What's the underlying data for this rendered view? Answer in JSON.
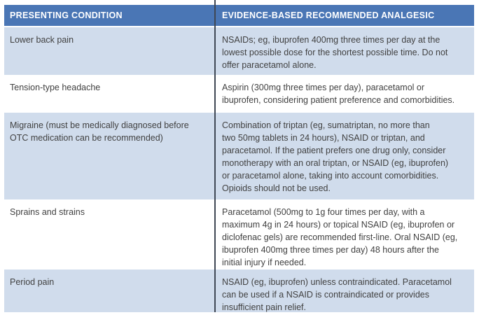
{
  "table": {
    "columns": [
      {
        "label": "PRESENTING CONDITION"
      },
      {
        "label": "EVIDENCE-BASED RECOMMENDED ANALGESIC"
      }
    ],
    "rows": [
      {
        "condition": "Lower back pain",
        "analgesic": "NSAIDs; eg, ibuprofen 400mg three times per day at the\nlowest possible dose for the shortest possible time. Do not\noffer paracetamol alone."
      },
      {
        "condition": "Tension-type headache",
        "analgesic": "Aspirin (300mg three times per day), paracetamol or\nibuprofen, considering patient preference and comorbidities."
      },
      {
        "condition": "Migraine (must be medically diagnosed before\nOTC medication can be recommended)",
        "analgesic": "Combination of triptan (eg, sumatriptan, no more than\ntwo 50mg tablets in 24 hours), NSAID or triptan, and\nparacetamol. If the patient prefers one drug only, consider\nmonotherapy with an oral triptan, or NSAID (eg, ibuprofen)\nor paracetamol alone, taking into account comorbidities.\nOpioids should not be used."
      },
      {
        "condition": "Sprains and strains",
        "analgesic": "Paracetamol (500mg to 1g four times per day, with a\nmaximum 4g in 24 hours) or topical NSAID (eg, ibuprofen or\ndiclofenac gels) are recommended first-line. Oral NSAID (eg,\nibuprofen 400mg three times per day) 48 hours after the\ninitial injury if needed."
      },
      {
        "condition": "Period pain",
        "analgesic": "NSAID (eg, ibuprofen) unless contraindicated. Paracetamol\ncan be used if a NSAID is contraindicated or provides\ninsufficient pain relief."
      }
    ]
  },
  "colors": {
    "header_bg": "#4a76b5",
    "header_text": "#ffffff",
    "row_shaded_bg": "#d0dcec",
    "body_text": "#414141",
    "divider": "#3f4754"
  }
}
